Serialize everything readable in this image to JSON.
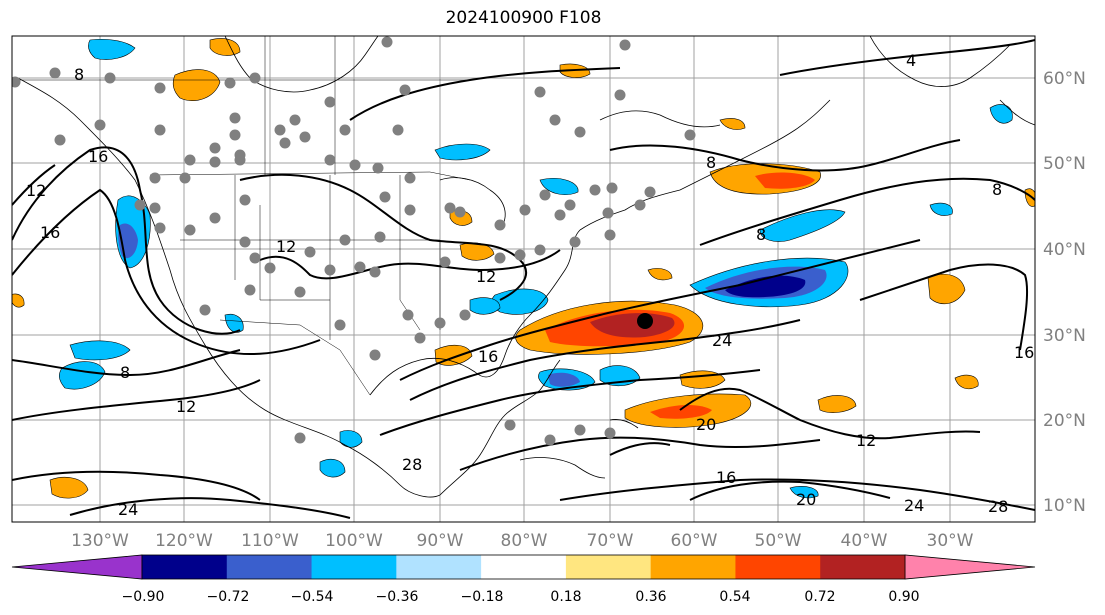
{
  "title": "2024100900 F108",
  "longitude_labels": [
    "130°W",
    "120°W",
    "110°W",
    "100°W",
    "90°W",
    "80°W",
    "70°W",
    "60°W",
    "50°W",
    "40°W",
    "30°W"
  ],
  "latitude_labels": [
    "60°N",
    "50°N",
    "40°N",
    "30°N",
    "20°N",
    "10°N"
  ],
  "colorbar": {
    "tick_labels": [
      "−0.90",
      "−0.72",
      "−0.54",
      "−0.36",
      "−0.18",
      "0.18",
      "0.36",
      "0.54",
      "0.72",
      "0.90"
    ],
    "colors": [
      "#9933cc",
      "#00008b",
      "#3a5fcd",
      "#00bfff",
      "#b0e2ff",
      "#ffffff",
      "#ffe680",
      "#ffa500",
      "#ff4500",
      "#b22222",
      "#ff82ab"
    ]
  },
  "contour_labels": [
    "4",
    "8",
    "12",
    "16",
    "20",
    "24",
    "28"
  ],
  "colors": {
    "axis_label": "#808080",
    "grid": "#a0a0a0",
    "station_dot": "#808080",
    "center_dot": "#000000"
  }
}
